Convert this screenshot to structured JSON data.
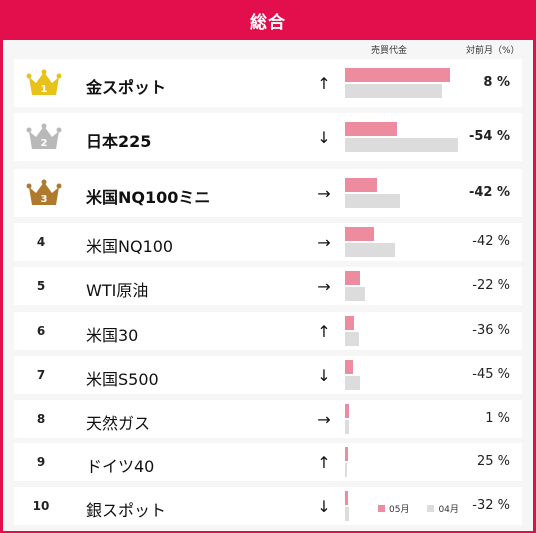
{
  "title": "総合",
  "columns": {
    "volume": "売買代金",
    "change": "対前月（%）"
  },
  "legend": {
    "may": "05月",
    "apr": "04月"
  },
  "colors": {
    "header": "#e30f4c",
    "may_bar": "#ee8c9f",
    "apr_bar": "#dcdcdc",
    "gold": "#e8c21a",
    "silver": "#b9b9b9",
    "bronze": "#b07a2e"
  },
  "rows": [
    {
      "rank": "1",
      "name": "金スポット",
      "arrow": "↑",
      "change": "8 %"
    },
    {
      "rank": "2",
      "name": "日本225",
      "arrow": "↓",
      "change": "-54 %"
    },
    {
      "rank": "3",
      "name": "米国NQ100ミニ",
      "arrow": "→",
      "change": "-42 %"
    },
    {
      "rank": "4",
      "name": "米国NQ100",
      "arrow": "→",
      "change": "-42 %"
    },
    {
      "rank": "5",
      "name": "WTI原油",
      "arrow": "→",
      "change": "-22 %"
    },
    {
      "rank": "6",
      "name": "米国30",
      "arrow": "↑",
      "change": "-36 %"
    },
    {
      "rank": "7",
      "name": "米国S500",
      "arrow": "↓",
      "change": "-45 %"
    },
    {
      "rank": "8",
      "name": "天然ガス",
      "arrow": "→",
      "change": "1 %"
    },
    {
      "rank": "9",
      "name": "ドイツ40",
      "arrow": "↑",
      "change": "25 %"
    },
    {
      "rank": "10",
      "name": "銀スポット",
      "arrow": "↓",
      "change": "-32 %"
    }
  ],
  "chart_data": {
    "type": "bar",
    "categories": [
      "金スポット",
      "日本225",
      "米国NQ100ミニ",
      "米国NQ100",
      "WTI原油",
      "米国30",
      "米国S500",
      "天然ガス",
      "ドイツ40",
      "銀スポット"
    ],
    "series": [
      {
        "name": "05月",
        "values": [
          105,
          52,
          32,
          29,
          15,
          9,
          8,
          4,
          3,
          3
        ]
      },
      {
        "name": "04月",
        "values": [
          97,
          113,
          55,
          50,
          20,
          14,
          15,
          4,
          2,
          4
        ]
      }
    ],
    "title": "総合",
    "ylim": [
      0,
      120
    ],
    "grid": false,
    "legend": "bottom-right"
  }
}
